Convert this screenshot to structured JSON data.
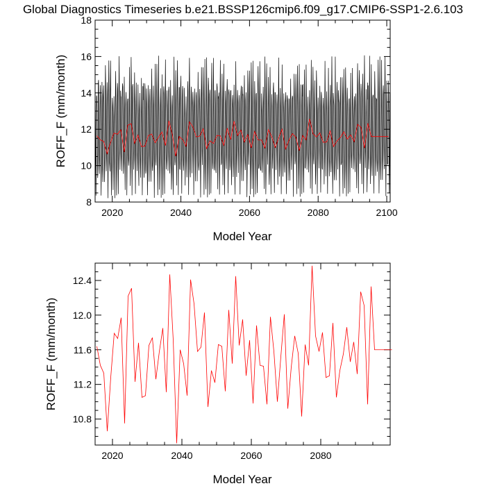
{
  "figure": {
    "title": "Global Diagnostics Timeseries b.e21.BSSP126cmip6.f09_g17.CMIP6-SSP1-2.6.103"
  },
  "colors": {
    "monthly": "#000000",
    "annual": "#ff0000",
    "frame": "#000000"
  },
  "chart_data": [
    {
      "type": "line",
      "xlabel": "Model Year",
      "ylabel": "ROFF_F (mm/month)",
      "xlim": [
        2015,
        2101
      ],
      "ylim": [
        8,
        18
      ],
      "xticks": [
        2020,
        2040,
        2060,
        2080,
        2100
      ],
      "yticks": [
        8,
        10,
        12,
        14,
        16,
        18
      ],
      "xminor_step": 5,
      "yminor_step": 0.5,
      "monthly_cycle_approx": {
        "months_per_year": 12,
        "minimum_value_range": [
          8.2,
          10.2
        ],
        "maximum_value_range": [
          13.6,
          16.1
        ],
        "peak_months_per_year": 2
      },
      "series": [
        {
          "role": "annual",
          "x": [
            2015,
            2016,
            2017,
            2018,
            2019,
            2020,
            2021,
            2022,
            2023,
            2024,
            2025,
            2026,
            2027,
            2028,
            2029,
            2030,
            2031,
            2032,
            2033,
            2034,
            2035,
            2036,
            2037,
            2038,
            2039,
            2040,
            2041,
            2042,
            2043,
            2044,
            2045,
            2046,
            2047,
            2048,
            2049,
            2050,
            2051,
            2052,
            2053,
            2054,
            2055,
            2056,
            2057,
            2058,
            2059,
            2060,
            2061,
            2062,
            2063,
            2064,
            2065,
            2066,
            2067,
            2068,
            2069,
            2070,
            2071,
            2072,
            2073,
            2074,
            2075,
            2076,
            2077,
            2078,
            2079,
            2080,
            2081,
            2082,
            2083,
            2084,
            2085,
            2086,
            2087,
            2088,
            2089,
            2090,
            2091,
            2092,
            2093,
            2094,
            2095,
            2096,
            2097,
            2098,
            2099,
            2100
          ],
          "y": [
            11.64,
            11.42,
            11.33,
            10.66,
            11.28,
            11.79,
            11.73,
            11.97,
            10.75,
            12.22,
            12.31,
            11.23,
            11.68,
            11.05,
            11.07,
            11.65,
            11.74,
            11.26,
            11.58,
            11.85,
            11.11,
            12.47,
            11.71,
            10.52,
            11.6,
            11.44,
            11.07,
            12.41,
            12.13,
            11.58,
            11.63,
            12.03,
            10.94,
            11.36,
            11.22,
            11.66,
            11.64,
            11.12,
            12.06,
            11.44,
            12.45,
            11.65,
            11.95,
            11.3,
            11.71,
            10.98,
            11.88,
            11.42,
            11.41,
            10.97,
            11.98,
            11.58,
            11.0,
            11.52,
            12.01,
            10.92,
            11.4,
            11.76,
            11.56,
            10.83,
            11.66,
            11.42,
            12.57,
            11.76,
            11.58,
            11.8,
            11.28,
            11.3,
            11.91,
            11.05,
            11.36,
            11.55,
            11.86,
            11.46,
            11.69,
            11.32,
            12.27,
            12.11,
            10.97,
            12.33,
            11.6,
            11.6,
            11.6,
            11.6,
            11.6,
            11.6
          ]
        }
      ]
    },
    {
      "type": "line",
      "xlabel": "Model Year",
      "ylabel": "ROFF_F (mm/month)",
      "xlim": [
        2015,
        2100
      ],
      "ylim": [
        10.5,
        12.6
      ],
      "xticks": [
        2020,
        2040,
        2060,
        2080
      ],
      "yticks": [
        10.8,
        11.2,
        11.6,
        12.0,
        12.4
      ],
      "xminor_step": 5,
      "yminor_step": 0.1,
      "series": [
        {
          "role": "annual",
          "x": [
            2015,
            2016,
            2017,
            2018,
            2019,
            2020,
            2021,
            2022,
            2023,
            2024,
            2025,
            2026,
            2027,
            2028,
            2029,
            2030,
            2031,
            2032,
            2033,
            2034,
            2035,
            2036,
            2037,
            2038,
            2039,
            2040,
            2041,
            2042,
            2043,
            2044,
            2045,
            2046,
            2047,
            2048,
            2049,
            2050,
            2051,
            2052,
            2053,
            2054,
            2055,
            2056,
            2057,
            2058,
            2059,
            2060,
            2061,
            2062,
            2063,
            2064,
            2065,
            2066,
            2067,
            2068,
            2069,
            2070,
            2071,
            2072,
            2073,
            2074,
            2075,
            2076,
            2077,
            2078,
            2079,
            2080,
            2081,
            2082,
            2083,
            2084,
            2085,
            2086,
            2087,
            2088,
            2089,
            2090,
            2091,
            2092,
            2093,
            2094,
            2095,
            2096,
            2097,
            2098,
            2099,
            2100
          ],
          "y": [
            11.64,
            11.42,
            11.33,
            10.66,
            11.28,
            11.79,
            11.73,
            11.97,
            10.75,
            12.22,
            12.31,
            11.23,
            11.68,
            11.05,
            11.07,
            11.65,
            11.74,
            11.26,
            11.58,
            11.85,
            11.11,
            12.47,
            11.71,
            10.52,
            11.6,
            11.44,
            11.07,
            12.41,
            12.13,
            11.58,
            11.63,
            12.03,
            10.94,
            11.36,
            11.22,
            11.66,
            11.64,
            11.12,
            12.06,
            11.44,
            12.45,
            11.65,
            11.95,
            11.3,
            11.71,
            10.98,
            11.88,
            11.42,
            11.41,
            10.97,
            11.98,
            11.58,
            11.0,
            11.52,
            12.01,
            10.92,
            11.4,
            11.76,
            11.56,
            10.83,
            11.66,
            11.42,
            12.57,
            11.76,
            11.58,
            11.8,
            11.28,
            11.3,
            11.91,
            11.05,
            11.36,
            11.55,
            11.86,
            11.46,
            11.69,
            11.32,
            12.27,
            12.11,
            10.97,
            12.33,
            11.6,
            11.6,
            11.6,
            11.6,
            11.6,
            11.6
          ]
        }
      ]
    }
  ]
}
